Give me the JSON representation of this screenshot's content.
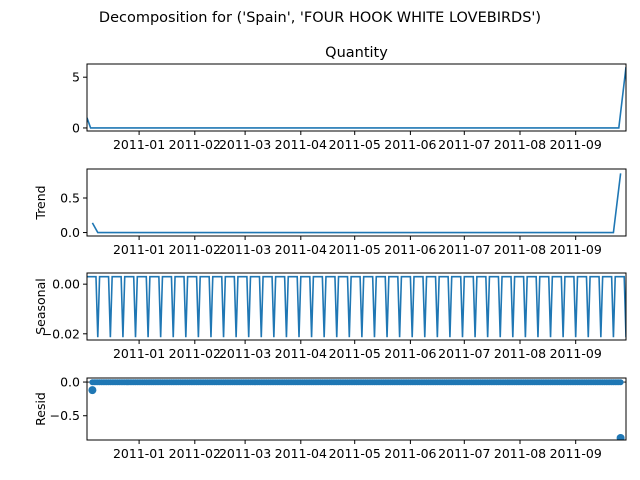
{
  "figure": {
    "suptitle": "Decomposition for ('Spain', 'FOUR HOOK  WHITE LOVEBIRDS')"
  },
  "colors": {
    "series": "#1f77b4",
    "axes": "#000000",
    "background": "#ffffff"
  },
  "chart_data": [
    {
      "type": "line",
      "title": "Quantity",
      "xlabel": "",
      "ylabel": "",
      "xlim": [
        "2010-12-03",
        "2011-09-29"
      ],
      "ylim": [
        -0.3,
        6.3
      ],
      "yticks": [
        0,
        5
      ],
      "ytick_labels": [
        "0",
        "5"
      ],
      "xticks": [
        "2011-01-01",
        "2011-02-01",
        "2011-03-01",
        "2011-04-01",
        "2011-05-01",
        "2011-06-01",
        "2011-07-01",
        "2011-08-01",
        "2011-09-01"
      ],
      "xtick_labels": [
        "2011-01",
        "2011-02",
        "2011-03",
        "2011-04",
        "2011-05",
        "2011-06",
        "2011-07",
        "2011-08",
        "2011-09"
      ],
      "grid": false,
      "series": [
        {
          "points": [
            [
              "2010-12-03",
              1.0
            ],
            [
              "2010-12-05",
              0
            ],
            [
              "2011-09-25",
              0
            ],
            [
              "2011-09-29",
              6.0
            ]
          ]
        }
      ]
    },
    {
      "type": "line",
      "title": "",
      "xlabel": "",
      "ylabel": "Trend",
      "xlim": [
        "2010-12-03",
        "2011-09-29"
      ],
      "ylim": [
        -0.05,
        0.92
      ],
      "yticks": [
        0.0,
        0.5
      ],
      "ytick_labels": [
        "0.0",
        "0.5"
      ],
      "xticks": [
        "2011-01-01",
        "2011-02-01",
        "2011-03-01",
        "2011-04-01",
        "2011-05-01",
        "2011-06-01",
        "2011-07-01",
        "2011-08-01",
        "2011-09-01"
      ],
      "xtick_labels": [
        "2011-01",
        "2011-02",
        "2011-03",
        "2011-04",
        "2011-05",
        "2011-06",
        "2011-07",
        "2011-08",
        "2011-09"
      ],
      "grid": false,
      "series": [
        {
          "points": [
            [
              "2010-12-06",
              0.14
            ],
            [
              "2010-12-09",
              0
            ],
            [
              "2011-09-22",
              0
            ],
            [
              "2011-09-26",
              0.857
            ]
          ]
        }
      ]
    },
    {
      "type": "line",
      "title": "",
      "xlabel": "",
      "ylabel": "Seasonal",
      "xlim": [
        "2010-12-03",
        "2011-09-29"
      ],
      "ylim": [
        -0.0225,
        0.0045
      ],
      "yticks": [
        0.0,
        -0.02
      ],
      "ytick_labels": [
        "0.00",
        "−0.02"
      ],
      "xticks": [
        "2011-01-01",
        "2011-02-01",
        "2011-03-01",
        "2011-04-01",
        "2011-05-01",
        "2011-06-01",
        "2011-07-01",
        "2011-08-01",
        "2011-09-01"
      ],
      "xtick_labels": [
        "2011-01",
        "2011-02",
        "2011-03",
        "2011-04",
        "2011-05",
        "2011-06",
        "2011-07",
        "2011-08",
        "2011-09"
      ],
      "grid": false,
      "series": [
        {
          "periodic": {
            "start": "2010-12-03",
            "end": "2011-09-29",
            "period_days": 7,
            "high": 0.003,
            "low": -0.0214,
            "low_day_index": 6
          }
        }
      ]
    },
    {
      "type": "scatter",
      "title": "",
      "xlabel": "",
      "ylabel": "Resid",
      "xlim": [
        "2010-12-03",
        "2011-09-29"
      ],
      "ylim": [
        -0.86,
        0.06
      ],
      "yticks": [
        0.0,
        -0.5
      ],
      "ytick_labels": [
        "0.0",
        "−0.5"
      ],
      "xticks": [
        "2011-01-01",
        "2011-02-01",
        "2011-03-01",
        "2011-04-01",
        "2011-05-01",
        "2011-06-01",
        "2011-07-01",
        "2011-08-01",
        "2011-09-01"
      ],
      "xtick_labels": [
        "2011-01",
        "2011-02",
        "2011-03",
        "2011-04",
        "2011-05",
        "2011-06",
        "2011-07",
        "2011-08",
        "2011-09"
      ],
      "grid": false,
      "baseline": 0,
      "series": [
        {
          "points": [
            [
              "2010-12-06",
              -0.12
            ],
            [
              "2011-09-26",
              -0.83
            ]
          ],
          "dense_baseline": {
            "start": "2010-12-06",
            "end": "2011-09-26",
            "step_days": 1,
            "value": -0.003
          }
        }
      ]
    }
  ]
}
